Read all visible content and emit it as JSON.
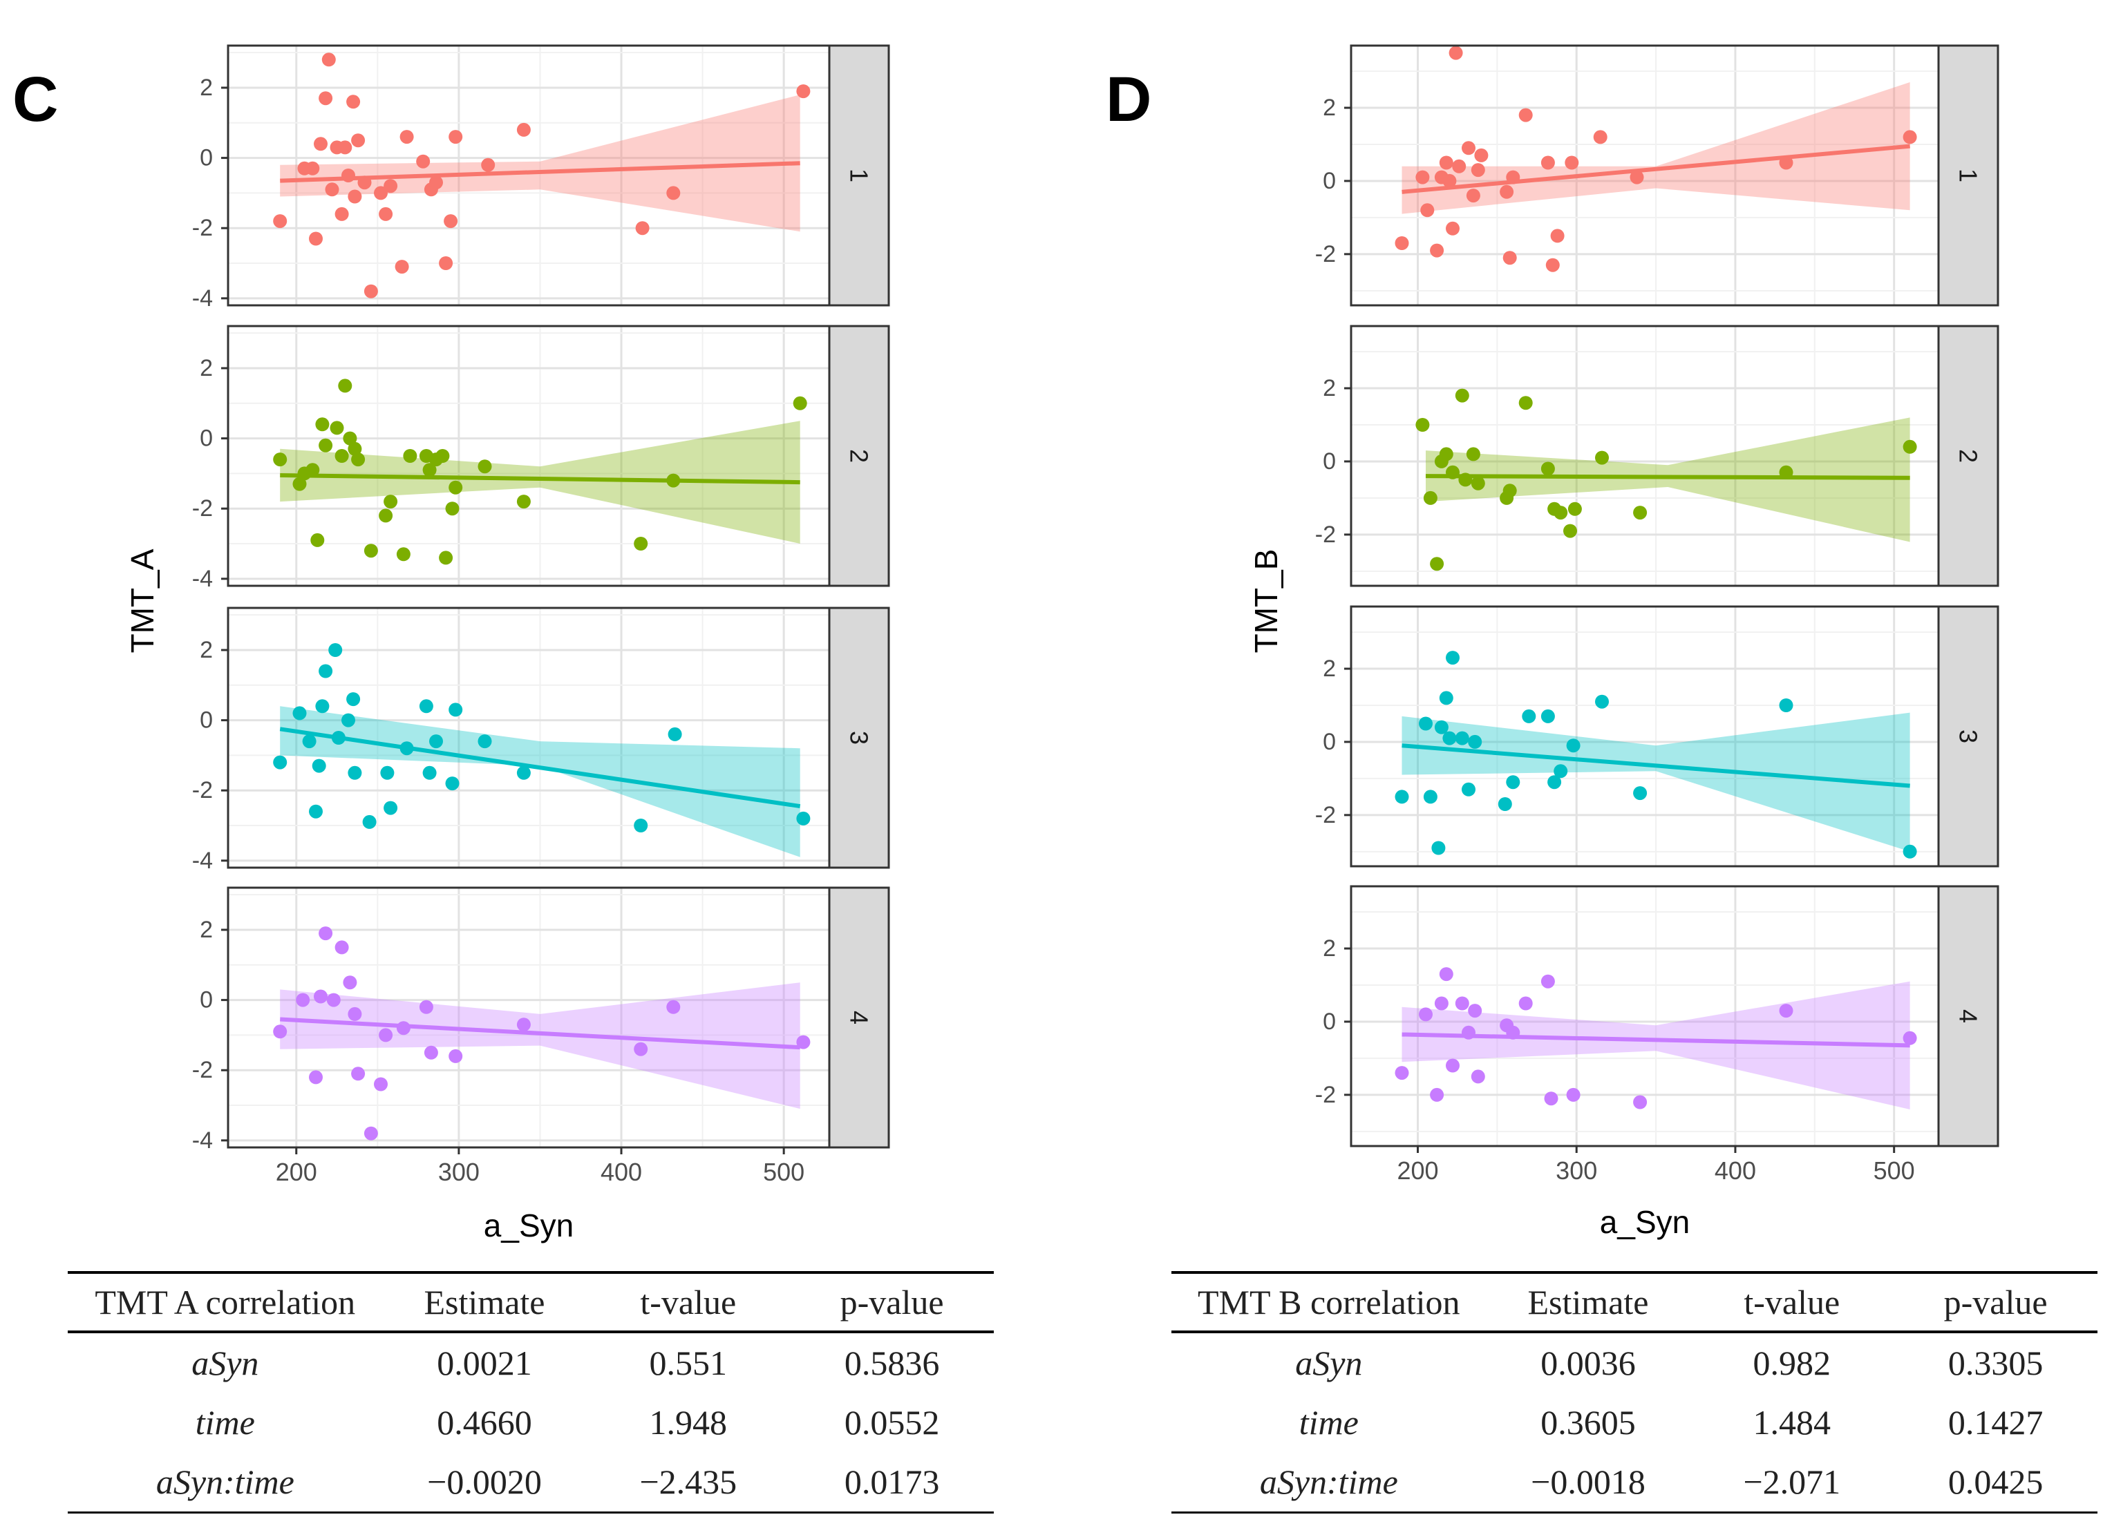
{
  "panels": [
    {
      "id": "C",
      "label": "C",
      "xlabel": "a_Syn",
      "ylabel": "TMT_A",
      "x_ticks": [
        200,
        300,
        400,
        500
      ],
      "xlim": [
        158,
        528
      ],
      "facets": [
        {
          "strip": "1",
          "color": "#F8766D",
          "ylim": [
            -4.2,
            3.2
          ],
          "y_ticks": [
            2,
            0,
            -2,
            -4
          ],
          "fit": {
            "x0": 190,
            "y0": -0.65,
            "x1": 510,
            "y1": -0.15
          },
          "band": {
            "lo0": -1.1,
            "hi0": -0.2,
            "lomid": -0.9,
            "himid": -0.1,
            "lo1": -2.1,
            "hi1": 1.8
          },
          "points": [
            [
              190,
              -1.8
            ],
            [
              205,
              -0.3
            ],
            [
              210,
              -0.3
            ],
            [
              212,
              -2.3
            ],
            [
              215,
              0.4
            ],
            [
              218,
              1.7
            ],
            [
              220,
              2.8
            ],
            [
              222,
              -0.9
            ],
            [
              225,
              0.3
            ],
            [
              228,
              -1.6
            ],
            [
              230,
              0.3
            ],
            [
              232,
              -0.5
            ],
            [
              235,
              1.6
            ],
            [
              236,
              -1.1
            ],
            [
              238,
              0.5
            ],
            [
              242,
              -0.7
            ],
            [
              246,
              -3.8
            ],
            [
              252,
              -1.0
            ],
            [
              255,
              -1.6
            ],
            [
              258,
              -0.8
            ],
            [
              265,
              -3.1
            ],
            [
              268,
              0.6
            ],
            [
              278,
              -0.1
            ],
            [
              283,
              -0.9
            ],
            [
              286,
              -0.7
            ],
            [
              292,
              -3.0
            ],
            [
              295,
              -1.8
            ],
            [
              298,
              0.6
            ],
            [
              318,
              -0.2
            ],
            [
              340,
              0.8
            ],
            [
              413,
              -2.0
            ],
            [
              432,
              -1.0
            ],
            [
              512,
              1.9
            ]
          ]
        },
        {
          "strip": "2",
          "color": "#7CAE00",
          "ylim": [
            -4.2,
            3.2
          ],
          "y_ticks": [
            2,
            0,
            -2,
            -4
          ],
          "fit": {
            "x0": 190,
            "y0": -1.05,
            "x1": 510,
            "y1": -1.25
          },
          "band": {
            "lo0": -1.8,
            "hi0": -0.3,
            "lomid": -1.4,
            "himid": -0.8,
            "lo1": -3.0,
            "hi1": 0.5
          },
          "points": [
            [
              190,
              -0.6
            ],
            [
              202,
              -1.3
            ],
            [
              205,
              -1.0
            ],
            [
              210,
              -0.9
            ],
            [
              213,
              -2.9
            ],
            [
              216,
              0.4
            ],
            [
              218,
              -0.2
            ],
            [
              225,
              0.3
            ],
            [
              228,
              -0.5
            ],
            [
              230,
              1.5
            ],
            [
              233,
              0.0
            ],
            [
              236,
              -0.3
            ],
            [
              238,
              -0.6
            ],
            [
              246,
              -3.2
            ],
            [
              255,
              -2.2
            ],
            [
              258,
              -1.8
            ],
            [
              266,
              -3.3
            ],
            [
              270,
              -0.5
            ],
            [
              280,
              -0.5
            ],
            [
              282,
              -0.9
            ],
            [
              286,
              -0.6
            ],
            [
              290,
              -0.5
            ],
            [
              292,
              -3.4
            ],
            [
              296,
              -2.0
            ],
            [
              298,
              -1.4
            ],
            [
              316,
              -0.8
            ],
            [
              340,
              -1.8
            ],
            [
              412,
              -3.0
            ],
            [
              432,
              -1.2
            ],
            [
              510,
              1.0
            ]
          ]
        },
        {
          "strip": "3",
          "color": "#00BFC4",
          "ylim": [
            -4.2,
            3.2
          ],
          "y_ticks": [
            2,
            0,
            -2,
            -4
          ],
          "fit": {
            "x0": 190,
            "y0": -0.25,
            "x1": 510,
            "y1": -2.45
          },
          "band": {
            "lo0": -1.0,
            "hi0": 0.4,
            "lomid": -1.3,
            "himid": -0.6,
            "lo1": -3.9,
            "hi1": -0.8
          },
          "points": [
            [
              190,
              -1.2
            ],
            [
              202,
              0.2
            ],
            [
              208,
              -0.6
            ],
            [
              212,
              -2.6
            ],
            [
              214,
              -1.3
            ],
            [
              216,
              0.4
            ],
            [
              218,
              1.4
            ],
            [
              224,
              2.0
            ],
            [
              226,
              -0.5
            ],
            [
              232,
              0.0
            ],
            [
              235,
              0.6
            ],
            [
              236,
              -1.5
            ],
            [
              245,
              -2.9
            ],
            [
              256,
              -1.5
            ],
            [
              258,
              -2.5
            ],
            [
              268,
              -0.8
            ],
            [
              280,
              0.4
            ],
            [
              282,
              -1.5
            ],
            [
              286,
              -0.6
            ],
            [
              296,
              -1.8
            ],
            [
              298,
              0.3
            ],
            [
              316,
              -0.6
            ],
            [
              340,
              -1.5
            ],
            [
              412,
              -3.0
            ],
            [
              433,
              -0.4
            ],
            [
              512,
              -2.8
            ]
          ]
        },
        {
          "strip": "4",
          "color": "#C77CFF",
          "ylim": [
            -4.2,
            3.2
          ],
          "y_ticks": [
            2,
            0,
            -2,
            -4
          ],
          "fit": {
            "x0": 190,
            "y0": -0.55,
            "x1": 510,
            "y1": -1.35
          },
          "band": {
            "lo0": -1.4,
            "hi0": 0.3,
            "lomid": -1.3,
            "himid": -0.4,
            "lo1": -3.1,
            "hi1": 0.5
          },
          "points": [
            [
              190,
              -0.9
            ],
            [
              204,
              0.0
            ],
            [
              212,
              -2.2
            ],
            [
              215,
              0.1
            ],
            [
              218,
              1.9
            ],
            [
              223,
              0.0
            ],
            [
              228,
              1.5
            ],
            [
              233,
              0.5
            ],
            [
              236,
              -0.4
            ],
            [
              238,
              -2.1
            ],
            [
              246,
              -3.8
            ],
            [
              252,
              -2.4
            ],
            [
              255,
              -1.0
            ],
            [
              266,
              -0.8
            ],
            [
              280,
              -0.2
            ],
            [
              283,
              -1.5
            ],
            [
              298,
              -1.6
            ],
            [
              340,
              -0.7
            ],
            [
              412,
              -1.4
            ],
            [
              432,
              -0.2
            ],
            [
              512,
              -1.2
            ]
          ]
        }
      ]
    },
    {
      "id": "D",
      "label": "D",
      "xlabel": "a_Syn",
      "ylabel": "TMT_B",
      "x_ticks": [
        200,
        300,
        400,
        500
      ],
      "xlim": [
        158,
        528
      ],
      "facets": [
        {
          "strip": "1",
          "color": "#F8766D",
          "ylim": [
            -3.4,
            3.7
          ],
          "y_ticks": [
            2,
            0,
            -2
          ],
          "fit": {
            "x0": 190,
            "y0": -0.3,
            "x1": 510,
            "y1": 0.95
          },
          "band": {
            "lo0": -0.9,
            "hi0": 0.4,
            "lomid": -0.2,
            "himid": 0.4,
            "lo1": -0.8,
            "hi1": 2.7
          },
          "points": [
            [
              190,
              -1.7
            ],
            [
              203,
              0.1
            ],
            [
              206,
              -0.8
            ],
            [
              212,
              -1.9
            ],
            [
              215,
              0.1
            ],
            [
              218,
              0.5
            ],
            [
              220,
              0.0
            ],
            [
              222,
              -1.3
            ],
            [
              224,
              3.5
            ],
            [
              226,
              0.4
            ],
            [
              232,
              0.9
            ],
            [
              235,
              -0.4
            ],
            [
              238,
              0.3
            ],
            [
              240,
              0.7
            ],
            [
              256,
              -0.3
            ],
            [
              258,
              -2.1
            ],
            [
              260,
              0.1
            ],
            [
              268,
              1.8
            ],
            [
              282,
              0.5
            ],
            [
              285,
              -2.3
            ],
            [
              288,
              -1.5
            ],
            [
              297,
              0.5
            ],
            [
              315,
              1.2
            ],
            [
              338,
              0.1
            ],
            [
              432,
              0.5
            ],
            [
              510,
              1.2
            ]
          ]
        },
        {
          "strip": "2",
          "color": "#7CAE00",
          "ylim": [
            -3.4,
            3.7
          ],
          "y_ticks": [
            2,
            0,
            -2
          ],
          "fit": {
            "x0": 205,
            "y0": -0.4,
            "x1": 510,
            "y1": -0.45
          },
          "band": {
            "lo0": -1.1,
            "hi0": 0.3,
            "lomid": -0.7,
            "himid": -0.1,
            "lo1": -2.2,
            "hi1": 1.2
          },
          "points": [
            [
              203,
              1.0
            ],
            [
              208,
              -1.0
            ],
            [
              212,
              -2.8
            ],
            [
              215,
              0.0
            ],
            [
              218,
              0.2
            ],
            [
              222,
              -0.3
            ],
            [
              228,
              1.8
            ],
            [
              230,
              -0.5
            ],
            [
              235,
              0.2
            ],
            [
              238,
              -0.6
            ],
            [
              256,
              -1.0
            ],
            [
              258,
              -0.8
            ],
            [
              268,
              1.6
            ],
            [
              282,
              -0.2
            ],
            [
              286,
              -1.3
            ],
            [
              290,
              -1.4
            ],
            [
              296,
              -1.9
            ],
            [
              299,
              -1.3
            ],
            [
              316,
              0.1
            ],
            [
              340,
              -1.4
            ],
            [
              432,
              -0.3
            ],
            [
              510,
              0.4
            ]
          ]
        },
        {
          "strip": "3",
          "color": "#00BFC4",
          "ylim": [
            -3.4,
            3.7
          ],
          "y_ticks": [
            2,
            0,
            -2
          ],
          "fit": {
            "x0": 190,
            "y0": -0.1,
            "x1": 510,
            "y1": -1.2
          },
          "band": {
            "lo0": -0.9,
            "hi0": 0.7,
            "lomid": -0.8,
            "himid": -0.1,
            "lo1": -3.0,
            "hi1": 0.8
          },
          "points": [
            [
              190,
              -1.5
            ],
            [
              205,
              0.5
            ],
            [
              208,
              -1.5
            ],
            [
              213,
              -2.9
            ],
            [
              215,
              0.4
            ],
            [
              218,
              1.2
            ],
            [
              220,
              0.1
            ],
            [
              222,
              2.3
            ],
            [
              228,
              0.1
            ],
            [
              232,
              -1.3
            ],
            [
              236,
              0.0
            ],
            [
              255,
              -1.7
            ],
            [
              260,
              -1.1
            ],
            [
              270,
              0.7
            ],
            [
              282,
              0.7
            ],
            [
              286,
              -1.1
            ],
            [
              290,
              -0.8
            ],
            [
              298,
              -0.1
            ],
            [
              316,
              1.1
            ],
            [
              340,
              -1.4
            ],
            [
              432,
              1.0
            ],
            [
              510,
              -3.0
            ]
          ]
        },
        {
          "strip": "4",
          "color": "#C77CFF",
          "ylim": [
            -3.4,
            3.7
          ],
          "y_ticks": [
            2,
            0,
            -2
          ],
          "fit": {
            "x0": 190,
            "y0": -0.35,
            "x1": 510,
            "y1": -0.65
          },
          "band": {
            "lo0": -1.1,
            "hi0": 0.4,
            "lomid": -0.8,
            "himid": -0.1,
            "lo1": -2.4,
            "hi1": 1.1
          },
          "points": [
            [
              190,
              -1.4
            ],
            [
              205,
              0.2
            ],
            [
              212,
              -2.0
            ],
            [
              215,
              0.5
            ],
            [
              218,
              1.3
            ],
            [
              222,
              -1.2
            ],
            [
              228,
              0.5
            ],
            [
              232,
              -0.3
            ],
            [
              236,
              0.3
            ],
            [
              238,
              -1.5
            ],
            [
              256,
              -0.1
            ],
            [
              260,
              -0.3
            ],
            [
              268,
              0.5
            ],
            [
              282,
              1.1
            ],
            [
              284,
              -2.1
            ],
            [
              298,
              -2.0
            ],
            [
              340,
              -2.2
            ],
            [
              432,
              0.3
            ],
            [
              510,
              -0.45
            ]
          ]
        }
      ]
    }
  ],
  "tables": [
    {
      "id": "tbl-c",
      "headers": [
        "TMT A correlation",
        "Estimate",
        "t-value",
        "p-value"
      ],
      "rows": [
        [
          "aSyn",
          "0.0021",
          "0.551",
          "0.5836"
        ],
        [
          "time",
          "0.4660",
          "1.948",
          "0.0552"
        ],
        [
          "aSyn:time",
          "−0.0020",
          "−2.435",
          "0.0173"
        ]
      ]
    },
    {
      "id": "tbl-d",
      "headers": [
        "TMT B correlation",
        "Estimate",
        "t-value",
        "p-value"
      ],
      "rows": [
        [
          "aSyn",
          "0.0036",
          "0.982",
          "0.3305"
        ],
        [
          "time",
          "0.3605",
          "1.484",
          "0.1427"
        ],
        [
          "aSyn:time",
          "−0.0018",
          "−2.071",
          "0.0425"
        ]
      ]
    }
  ]
}
